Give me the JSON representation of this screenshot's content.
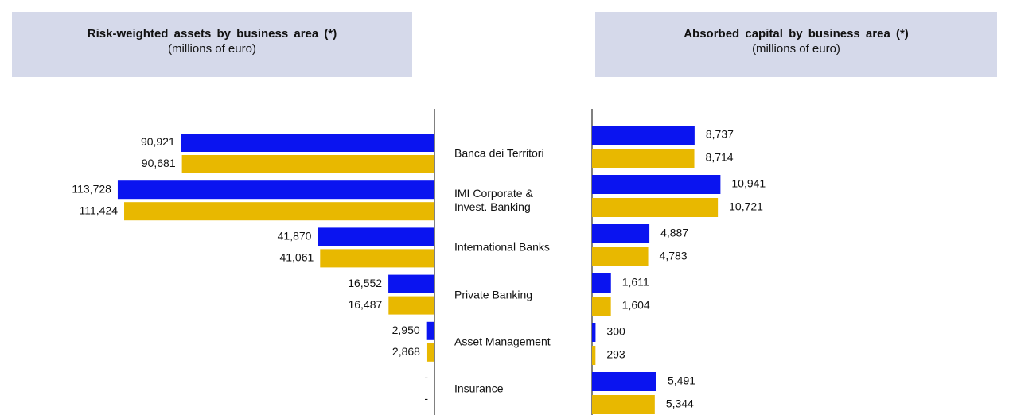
{
  "chart_data": [
    {
      "type": "bar",
      "orientation": "horizontal",
      "title": "Risk-weighted assets by business area (*)",
      "subtitle": "(millions of euro)",
      "categories": [
        "Banca dei Territori",
        "IMI Corporate &\nInvest. Banking",
        "International Banks",
        "Private Banking",
        "Asset Management",
        "Insurance"
      ],
      "xlim": [
        0,
        120000
      ],
      "series": [
        {
          "color": "#0a14f0",
          "values": [
            90921,
            113728,
            41870,
            16552,
            2950,
            0
          ],
          "value_labels": [
            "90,921",
            "113,728",
            "41,870",
            "16,552",
            "2,950",
            "-"
          ]
        },
        {
          "color": "#e8b800",
          "values": [
            90681,
            111424,
            41061,
            16487,
            2868,
            0
          ],
          "value_labels": [
            "90,681",
            "111,424",
            "41,061",
            "16,487",
            "2,868",
            "-"
          ]
        }
      ]
    },
    {
      "type": "bar",
      "orientation": "horizontal",
      "title": "Absorbed capital by business area (*)",
      "subtitle": "(millions of euro)",
      "xlim": [
        0,
        12000
      ],
      "series": [
        {
          "color": "#0a14f0",
          "values": [
            8737,
            10941,
            4887,
            1611,
            300,
            5491
          ],
          "value_labels": [
            "8,737",
            "10,941",
            "4,887",
            "1,611",
            "300",
            "5,491"
          ]
        },
        {
          "color": "#e8b800",
          "values": [
            8714,
            10721,
            4783,
            1604,
            293,
            5344
          ],
          "value_labels": [
            "8,714",
            "10,721",
            "4,783",
            "1,604",
            "293",
            "5,344"
          ]
        }
      ]
    }
  ]
}
